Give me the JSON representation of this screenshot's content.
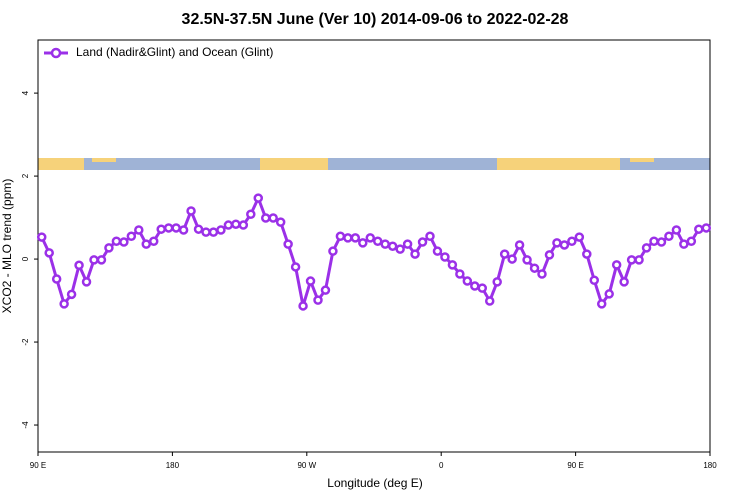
{
  "chart_data": {
    "type": "line",
    "title": "32.5N-37.5N June (Ver 10)   2014-09-06 to 2022-02-28",
    "x_label": "Longitude (deg E)",
    "y_label": "XCO2 - MLO trend (ppm)",
    "xlim": [
      90,
      540
    ],
    "ylim": [
      -4.65,
      5.28
    ],
    "xticks": [
      {
        "value": 90,
        "label": "90 E"
      },
      180,
      {
        "value": 270,
        "label": "90 W"
      },
      {
        "value": 360,
        "label": "0"
      },
      {
        "value": 450,
        "label": "90 E"
      },
      {
        "value": 540,
        "label": "180"
      }
    ],
    "yticks": [
      -4,
      -2,
      0,
      2,
      4
    ],
    "legend_position": "top-left",
    "x": [
      92.5,
      97.5,
      102.5,
      107.5,
      112.5,
      117.5,
      122.5,
      127.5,
      132.5,
      137.5,
      142.5,
      147.5,
      152.5,
      157.5,
      162.5,
      167.5,
      172.5,
      177.5,
      182.5,
      187.5,
      192.5,
      197.5,
      202.5,
      207.5,
      212.5,
      217.5,
      222.5,
      227.5,
      232.5,
      237.5,
      242.5,
      247.5,
      252.5,
      257.5,
      262.5,
      267.5,
      272.5,
      277.5,
      282.5,
      287.5,
      292.5,
      297.5,
      302.5,
      307.5,
      312.5,
      317.5,
      322.5,
      327.5,
      332.5,
      337.5,
      342.5,
      347.5,
      352.5,
      357.5,
      362.5,
      367.5,
      372.5,
      377.5,
      382.5,
      387.5,
      392.5,
      397.5,
      402.5,
      407.5,
      412.5,
      417.5,
      422.5,
      427.5,
      432.5,
      437.5,
      442.5,
      447.5,
      452.5,
      457.5,
      462.5,
      467.5,
      472.5,
      477.5,
      482.5,
      487.5,
      492.5,
      497.5,
      502.5,
      507.5,
      512.5,
      517.5,
      522.5,
      527.5,
      532.5,
      537.5
    ],
    "series": [
      {
        "name": "Land (Nadir&Glint) and Ocean (Glint)",
        "color": "#9b30e8",
        "values": [
          0.53,
          0.15,
          -0.48,
          -1.08,
          -0.85,
          -0.15,
          -0.55,
          -0.02,
          -0.02,
          0.27,
          0.43,
          0.41,
          0.55,
          0.7,
          0.36,
          0.43,
          0.72,
          0.75,
          0.75,
          0.7,
          1.16,
          0.72,
          0.65,
          0.65,
          0.7,
          0.82,
          0.84,
          0.82,
          1.08,
          1.47,
          0.99,
          0.99,
          0.89,
          0.36,
          -0.19,
          -1.13,
          -0.53,
          -0.99,
          -0.75,
          0.19,
          0.55,
          0.51,
          0.51,
          0.39,
          0.51,
          0.43,
          0.36,
          0.31,
          0.24,
          0.36,
          0.12,
          0.41,
          0.55,
          0.19,
          0.05,
          -0.14,
          -0.36,
          -0.53,
          -0.65,
          -0.7,
          -1.01,
          -0.55,
          0.12,
          0.0,
          0.34,
          -0.02,
          -0.22,
          -0.36,
          0.1,
          0.39,
          0.34,
          0.43,
          0.53,
          0.12,
          -0.51,
          -1.08,
          -0.84,
          -0.14,
          -0.55,
          -0.02,
          -0.02,
          0.27,
          0.43,
          0.41,
          0.55,
          0.7,
          0.36,
          0.43,
          0.72,
          0.75
        ]
      }
    ]
  }
}
